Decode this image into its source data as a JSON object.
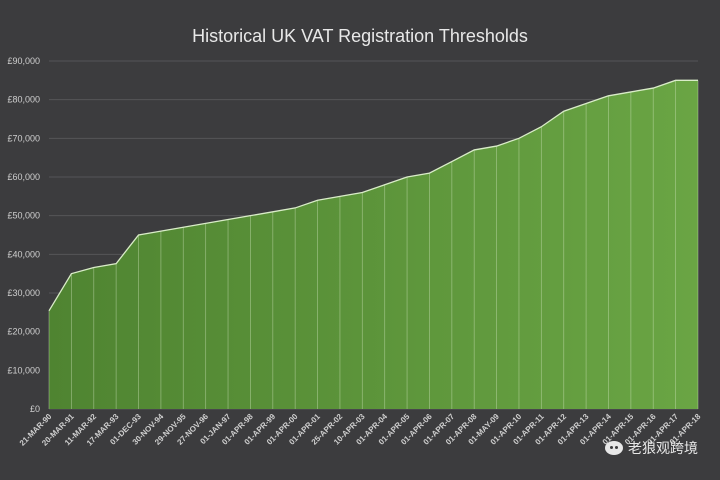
{
  "chart_data": {
    "type": "area",
    "title": "Historical UK VAT Registration Thresholds",
    "xlabel": "",
    "ylabel": "",
    "ylim": [
      0,
      90000
    ],
    "yticks": [
      "£0",
      "£10,000",
      "£20,000",
      "£30,000",
      "£40,000",
      "£50,000",
      "£60,000",
      "£70,000",
      "£80,000",
      "£90,000"
    ],
    "categories": [
      "21-MAR-90",
      "20-MAR-91",
      "11-MAR-92",
      "17-MAR-93",
      "01-DEC-93",
      "30-NOV-94",
      "29-NOV-95",
      "27-NOV-96",
      "01-JAN-97",
      "01-APR-98",
      "01-APR-99",
      "01-APR-00",
      "01-APR-01",
      "25-APR-02",
      "10-APR-03",
      "01-APR-04",
      "01-APR-05",
      "01-APR-06",
      "01-APR-07",
      "01-APR-08",
      "01-MAY-09",
      "01-APR-10",
      "01-APR-11",
      "01-APR-12",
      "01-APR-13",
      "01-APR-14",
      "01-APR-15",
      "01-APR-16",
      "01-APR-17",
      "01-APR-18"
    ],
    "values": [
      25400,
      35000,
      36600,
      37600,
      45000,
      46000,
      47000,
      48000,
      49000,
      50000,
      51000,
      52000,
      54000,
      55000,
      56000,
      58000,
      60000,
      61000,
      64000,
      67000,
      68000,
      70000,
      73000,
      77000,
      79000,
      81000,
      82000,
      83000,
      85000,
      85000
    ],
    "grid": true,
    "colors": {
      "fill": "#6aa544",
      "fill_dark": "#4f8431",
      "line": "#d9ecc8",
      "grid": "#555558",
      "background": "#3c3c3e"
    }
  },
  "watermark": {
    "text": "老狼观跨境",
    "icon": "wechat-icon"
  }
}
